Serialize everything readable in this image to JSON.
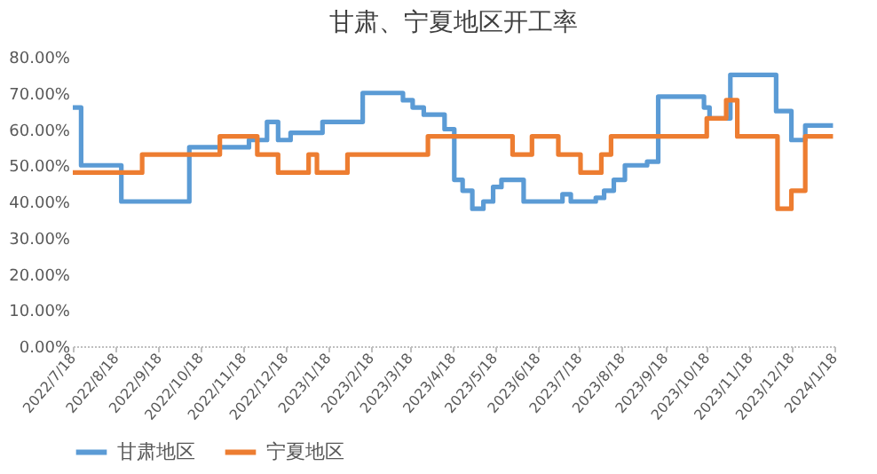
{
  "chart_data": {
    "type": "step",
    "title": "甘肃、宁夏地区开工率",
    "xlim": [
      "2022-07-18",
      "2024-01-18"
    ],
    "xticks": [
      {
        "value": "2022-07-18",
        "label": "2022/7/18"
      },
      {
        "value": "2022-08-18",
        "label": "2022/8/18"
      },
      {
        "value": "2022-09-18",
        "label": "2022/9/18"
      },
      {
        "value": "2022-10-18",
        "label": "2022/10/18"
      },
      {
        "value": "2022-11-18",
        "label": "2022/11/18"
      },
      {
        "value": "2022-12-18",
        "label": "2022/12/18"
      },
      {
        "value": "2023-01-18",
        "label": "2023/1/18"
      },
      {
        "value": "2023-02-18",
        "label": "2023/2/18"
      },
      {
        "value": "2023-03-18",
        "label": "2023/3/18"
      },
      {
        "value": "2023-04-18",
        "label": "2023/4/18"
      },
      {
        "value": "2023-05-18",
        "label": "2023/5/18"
      },
      {
        "value": "2023-06-18",
        "label": "2023/6/18"
      },
      {
        "value": "2023-07-18",
        "label": "2023/7/18"
      },
      {
        "value": "2023-08-18",
        "label": "2023/8/18"
      },
      {
        "value": "2023-09-18",
        "label": "2023/9/18"
      },
      {
        "value": "2023-10-18",
        "label": "2023/10/18"
      },
      {
        "value": "2023-11-18",
        "label": "2023/11/18"
      },
      {
        "value": "2023-12-18",
        "label": "2023/12/18"
      },
      {
        "value": "2024-01-18",
        "label": "2024/1/18"
      }
    ],
    "ylim": [
      0,
      80
    ],
    "yticks": [
      {
        "value": 0,
        "label": "0.00%"
      },
      {
        "value": 10,
        "label": "10.00%"
      },
      {
        "value": 20,
        "label": "20.00%"
      },
      {
        "value": 30,
        "label": "30.00%"
      },
      {
        "value": 40,
        "label": "40.00%"
      },
      {
        "value": 50,
        "label": "50.00%"
      },
      {
        "value": 60,
        "label": "60.00%"
      },
      {
        "value": 70,
        "label": "70.00%"
      },
      {
        "value": 80,
        "label": "80.00%"
      }
    ],
    "grid": false,
    "legend": "bottom",
    "line_style": "solid",
    "marker": "none",
    "series": [
      {
        "name": "甘肃地区",
        "color": "#5b9bd5",
        "x": [
          "2022-07-18",
          "2022-07-24",
          "2022-08-22",
          "2022-10-10",
          "2022-11-22",
          "2022-12-05",
          "2022-12-13",
          "2022-12-22",
          "2023-01-14",
          "2023-02-12",
          "2023-03-13",
          "2023-03-20",
          "2023-03-28",
          "2023-04-12",
          "2023-04-19",
          "2023-04-25",
          "2023-05-02",
          "2023-05-10",
          "2023-05-17",
          "2023-05-23",
          "2023-06-08",
          "2023-07-06",
          "2023-07-12",
          "2023-07-30",
          "2023-08-05",
          "2023-08-12",
          "2023-08-20",
          "2023-09-05",
          "2023-09-13",
          "2023-10-16",
          "2023-10-20",
          "2023-11-04",
          "2023-12-07",
          "2023-12-18",
          "2023-12-28",
          "2024-01-17"
        ],
        "values": [
          66,
          50,
          40,
          55,
          57,
          62,
          57,
          59,
          62,
          70,
          68,
          66,
          64,
          60,
          46,
          43,
          38,
          40,
          44,
          46,
          40,
          42,
          40,
          41,
          43,
          46,
          50,
          51,
          69,
          66,
          63,
          75,
          65,
          57,
          61,
          61
        ]
      },
      {
        "name": "宁夏地区",
        "color": "#ed7d31",
        "x": [
          "2022-07-18",
          "2022-09-06",
          "2022-11-01",
          "2022-11-28",
          "2022-12-13",
          "2023-01-04",
          "2023-01-10",
          "2023-02-01",
          "2023-03-31",
          "2023-05-31",
          "2023-06-14",
          "2023-07-03",
          "2023-07-19",
          "2023-08-03",
          "2023-08-10",
          "2023-10-18",
          "2023-11-01",
          "2023-11-09",
          "2023-12-08",
          "2023-12-18",
          "2023-12-28",
          "2024-01-17"
        ],
        "values": [
          48,
          53,
          58,
          53,
          48,
          53,
          48,
          53,
          58,
          53,
          58,
          53,
          48,
          53,
          58,
          63,
          68,
          58,
          38,
          43,
          58,
          58
        ]
      }
    ]
  }
}
